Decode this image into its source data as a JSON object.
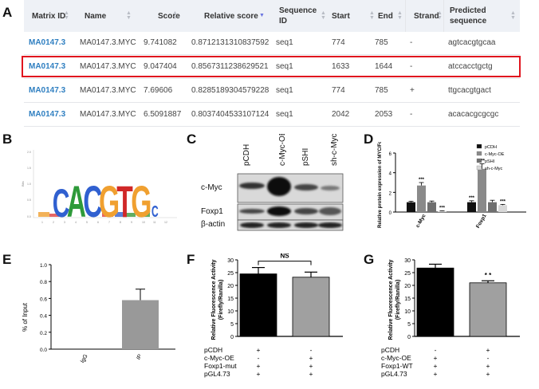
{
  "panels": {
    "A": "A",
    "B": "B",
    "C": "C",
    "D": "D",
    "E": "E",
    "F": "F",
    "G": "G"
  },
  "table": {
    "columns": [
      "Matrix ID",
      "Name",
      "Score",
      "Relative score",
      "Sequence ID",
      "Start",
      "End",
      "Strand",
      "Predicted sequence"
    ],
    "rows": [
      {
        "matrix_id": "MA0147.3",
        "name": "MA0147.3.MYC",
        "score": "9.741082",
        "relative_score": "0.8712131310837592",
        "sequence_id": "seq1",
        "start": "774",
        "end": "785",
        "strand": "-",
        "predicted": "agtcacgtgcaa"
      },
      {
        "matrix_id": "MA0147.3",
        "name": "MA0147.3.MYC",
        "score": "9.047404",
        "relative_score": "0.8567311238629521",
        "sequence_id": "seq1",
        "start": "1633",
        "end": "1644",
        "strand": "-",
        "predicted": "atccacctgctg"
      },
      {
        "matrix_id": "MA0147.3",
        "name": "MA0147.3.MYC",
        "score": "7.69606",
        "relative_score": "0.8285189304579228",
        "sequence_id": "seq1",
        "start": "774",
        "end": "785",
        "strand": "+",
        "predicted": "ttgcacgtgact"
      },
      {
        "matrix_id": "MA0147.3",
        "name": "MA0147.3.MYC",
        "score": "6.5091887",
        "relative_score": "0.8037404533107124",
        "sequence_id": "seq1",
        "start": "2042",
        "end": "2053",
        "strand": "-",
        "predicted": "acacacgcgcgc"
      }
    ]
  },
  "logo": {
    "letters": [
      "C",
      "A",
      "C",
      "G",
      "T",
      "G",
      "C"
    ],
    "yticks": [
      "2.0",
      "1.5",
      "1.0",
      "0.5",
      "0.0"
    ],
    "xticks": [
      "1",
      "2",
      "3",
      "4",
      "5",
      "6",
      "7",
      "8",
      "9",
      "10",
      "11",
      "12"
    ],
    "ylabel": "Bits"
  },
  "western": {
    "lanes": [
      "pCDH",
      "c-Myc-OE",
      "pSHI",
      "sh-c-Myc"
    ],
    "proteins": [
      "c-Myc",
      "Foxp1",
      "β-actin"
    ]
  },
  "chart_data": [
    {
      "type": "bar",
      "panel": "D",
      "ylabel": "Relative protein expression of MYC/Foxp1",
      "categories": [
        "c-Myc",
        "Foxp1"
      ],
      "ylim": [
        0,
        6
      ],
      "yticks": [
        0,
        2,
        4,
        6
      ],
      "series": [
        {
          "name": "pCDH",
          "values": [
            1.0,
            1.0
          ],
          "color": "#111111"
        },
        {
          "name": "c-Myc-OE",
          "values": [
            2.7,
            4.4
          ],
          "color": "#8a8a8a"
        },
        {
          "name": "pSHI",
          "values": [
            1.0,
            1.0
          ],
          "color": "#6f6f6f"
        },
        {
          "name": "sh-c-Myc",
          "values": [
            0.1,
            0.7
          ],
          "color": "#d8d8d8"
        }
      ],
      "errors": [
        [
          0.1,
          0.15
        ],
        [
          0.3,
          0.5
        ],
        [
          0.12,
          0.2
        ],
        [
          0.03,
          0.08
        ]
      ],
      "annotations": [
        [
          "",
          "***"
        ],
        [
          "***",
          "***"
        ],
        [
          "",
          ""
        ],
        [
          "***",
          "***"
        ]
      ]
    },
    {
      "type": "bar",
      "panel": "E",
      "ylabel": "% of Input",
      "categories": [
        "IgG",
        "IP"
      ],
      "values": [
        0,
        0.58
      ],
      "errors": [
        0,
        0.13
      ],
      "ylim": [
        0,
        1.0
      ],
      "yticks": [
        0.0,
        0.2,
        0.4,
        0.6,
        0.8,
        1.0
      ],
      "colors": [
        "#999999",
        "#999999"
      ]
    },
    {
      "type": "bar",
      "panel": "F",
      "ylabel": "Relative Fluorescence Activity (Firefly/Ranilla)",
      "values": [
        24.5,
        23.2
      ],
      "errors": [
        2.5,
        2.0
      ],
      "ylim": [
        0,
        30
      ],
      "yticks": [
        0,
        5,
        10,
        15,
        20,
        25,
        30
      ],
      "colors": [
        "#000000",
        "#a0a0a0"
      ],
      "significance": "NS",
      "conditions": [
        {
          "label": "pCDH",
          "marks": [
            "+",
            "-"
          ]
        },
        {
          "label": "c-Myc-OE",
          "marks": [
            "-",
            "+"
          ]
        },
        {
          "label": "Foxp1-mut",
          "marks": [
            "+",
            "+"
          ]
        },
        {
          "label": "pGL4.73",
          "marks": [
            "+",
            "+"
          ]
        }
      ]
    },
    {
      "type": "bar",
      "panel": "G",
      "ylabel": "Relative Fluorescence Activity (Firefly/Ranilla)",
      "values": [
        26.8,
        21.0
      ],
      "errors": [
        1.5,
        0.8
      ],
      "ylim": [
        0,
        30
      ],
      "yticks": [
        0,
        5,
        10,
        15,
        20,
        25,
        30
      ],
      "colors": [
        "#000000",
        "#a0a0a0"
      ],
      "significance": "* *",
      "conditions": [
        {
          "label": "pCDH",
          "marks": [
            "-",
            "+"
          ]
        },
        {
          "label": "c-Myc-OE",
          "marks": [
            "+",
            "-"
          ]
        },
        {
          "label": "Foxp1-WT",
          "marks": [
            "+",
            "+"
          ]
        },
        {
          "label": "pGL4.73",
          "marks": [
            "+",
            "+"
          ]
        }
      ]
    }
  ]
}
